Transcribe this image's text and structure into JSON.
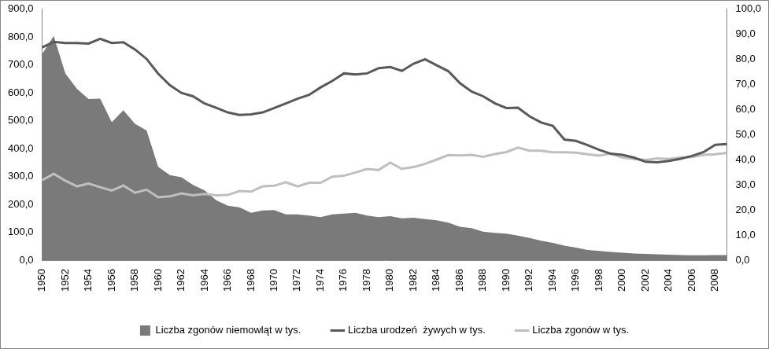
{
  "chart_data": {
    "type": "line",
    "categories": [
      "1950",
      null,
      "1952",
      null,
      "1954",
      null,
      "1956",
      null,
      "1958",
      null,
      "1960",
      null,
      "1962",
      null,
      "1964",
      null,
      "1966",
      null,
      "1968",
      null,
      "1970",
      null,
      "1972",
      null,
      "1974",
      null,
      "1976",
      null,
      "1978",
      null,
      "1980",
      null,
      "1982",
      null,
      "1984",
      null,
      "1986",
      null,
      "1988",
      null,
      "1990",
      null,
      "1992",
      null,
      "1994",
      null,
      "1996",
      null,
      "1998",
      null,
      "2000",
      null,
      "2002",
      null,
      "2004",
      null,
      "2006",
      null,
      "2008",
      null
    ],
    "series": [
      {
        "name": "Liczba zgonów niemowląt w tys.",
        "type": "area",
        "color": "#7a7a7a",
        "axis": "y2",
        "values": [
          82.2,
          89.4,
          74.4,
          68.3,
          64.2,
          64.4,
          55.0,
          59.8,
          54.4,
          51.7,
          37.2,
          33.9,
          33.1,
          30.0,
          27.8,
          23.9,
          21.7,
          21.1,
          18.9,
          19.8,
          20.0,
          18.3,
          18.3,
          17.8,
          17.2,
          18.3,
          18.6,
          18.9,
          17.8,
          17.2,
          17.6,
          16.7,
          16.9,
          16.4,
          15.9,
          15.0,
          13.3,
          12.8,
          11.4,
          10.9,
          10.6,
          9.8,
          8.9,
          7.8,
          6.9,
          5.8,
          5.0,
          4.1,
          3.7,
          3.3,
          3.0,
          2.7,
          2.5,
          2.4,
          2.2,
          2.1,
          2.0,
          2.0,
          2.1,
          2.1
        ]
      },
      {
        "name": "Liczba urodzeń  żywych w tys.",
        "type": "line",
        "color": "#595959",
        "values": [
          763,
          783,
          779,
          779,
          777,
          794,
          779,
          782,
          756,
          722,
          669,
          628,
          600,
          588,
          562,
          547,
          530,
          521,
          523,
          530,
          546,
          562,
          579,
          593,
          620,
          643,
          670,
          666,
          670,
          689,
          693,
          679,
          705,
          721,
          699,
          678,
          635,
          605,
          588,
          563,
          546,
          547,
          516,
          494,
          482,
          433,
          428,
          413,
          396,
          382,
          378,
          368,
          353,
          351,
          356,
          364,
          374,
          388,
          414,
          417
        ]
      },
      {
        "name": "Liczba zgonów w tys.",
        "type": "line",
        "color": "#bfbfbf",
        "values": [
          287,
          310,
          285,
          265,
          275,
          262,
          250,
          268,
          242,
          253,
          226,
          229,
          240,
          233,
          238,
          233,
          234,
          248,
          246,
          265,
          267,
          280,
          265,
          278,
          278,
          300,
          303,
          315,
          327,
          324,
          350,
          328,
          334,
          346,
          361,
          377,
          376,
          378,
          371,
          381,
          388,
          404,
          393,
          393,
          387,
          387,
          386,
          380,
          375,
          382,
          368,
          363,
          360,
          365,
          363,
          368,
          370,
          378,
          380,
          385
        ]
      }
    ],
    "ylim": [
      0,
      900
    ],
    "yticks": [
      {
        "value": 0,
        "label": "0,0"
      },
      {
        "value": 100,
        "label": "100,0"
      },
      {
        "value": 200,
        "label": "200,0"
      },
      {
        "value": 300,
        "label": "300,0"
      },
      {
        "value": 400,
        "label": "400,0"
      },
      {
        "value": 500,
        "label": "500,0"
      },
      {
        "value": 600,
        "label": "600,0"
      },
      {
        "value": 700,
        "label": "700,0"
      },
      {
        "value": 800,
        "label": "800,0"
      },
      {
        "value": 900,
        "label": "900,0"
      }
    ],
    "y2lim": [
      0,
      100
    ],
    "y2ticks": [
      {
        "value": 0,
        "label": "0,0"
      },
      {
        "value": 10,
        "label": "10,0"
      },
      {
        "value": 20,
        "label": "20,0"
      },
      {
        "value": 30,
        "label": "30,0"
      },
      {
        "value": 40,
        "label": "40,0"
      },
      {
        "value": 50,
        "label": "50,0"
      },
      {
        "value": 60,
        "label": "60,0"
      },
      {
        "value": 70,
        "label": "70,0"
      },
      {
        "value": 80,
        "label": "80,0"
      },
      {
        "value": 90,
        "label": "90,0"
      },
      {
        "value": 100,
        "label": "100,0"
      }
    ],
    "grid": false,
    "legend": "bottom"
  }
}
